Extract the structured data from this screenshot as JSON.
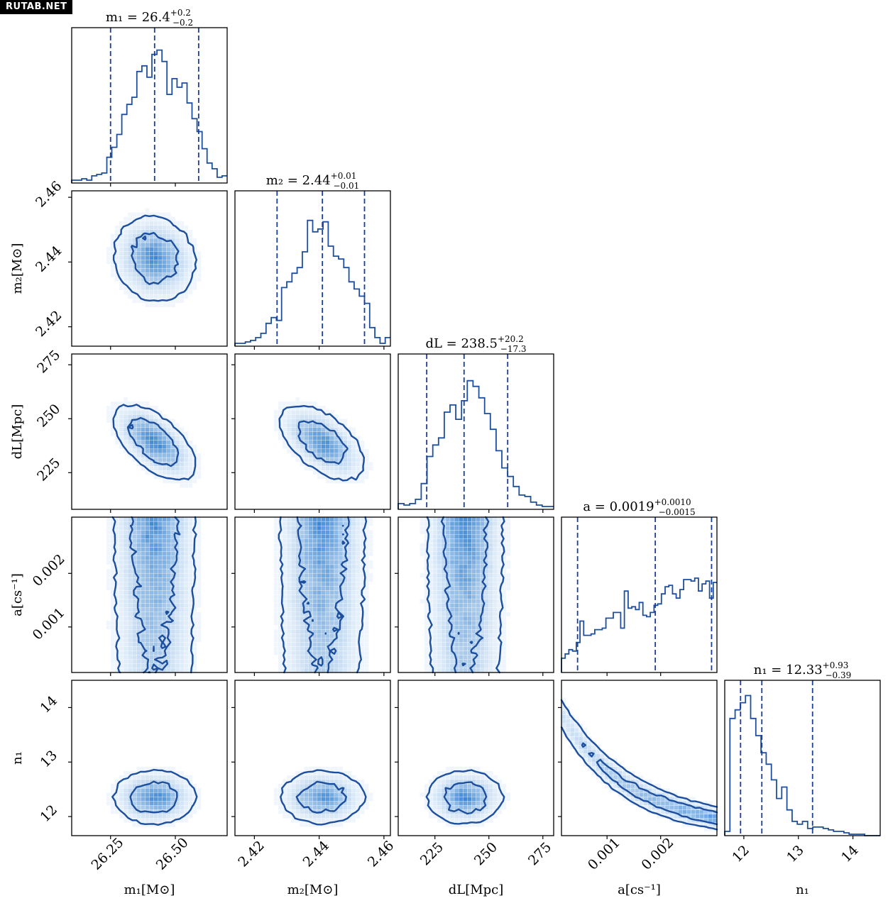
{
  "watermark": "RUTAB.NET",
  "chart_data": {
    "type": "corner",
    "parameters": [
      {
        "key": "m1",
        "label": "m₁[M⊙]",
        "title": "m₁ = 26.4",
        "title_sup": "+0.2",
        "title_sub": "−0.2",
        "range": [
          26.1,
          26.7
        ],
        "ticks": [
          26.25,
          26.5
        ],
        "tick_labels": [
          "26.25",
          "26.50"
        ],
        "mean": 26.42,
        "sd": 0.09,
        "quantiles": [
          26.25,
          26.42,
          26.59
        ]
      },
      {
        "key": "m2",
        "label": "m₂[M⊙]",
        "title": "m₂ = 2.44",
        "title_sup": "+0.01",
        "title_sub": "−0.01",
        "range": [
          2.414,
          2.462
        ],
        "ticks": [
          2.42,
          2.44,
          2.46
        ],
        "tick_labels": [
          "2.42",
          "2.44",
          "2.46"
        ],
        "mean": 2.441,
        "sd": 0.0075,
        "quantiles": [
          2.427,
          2.441,
          2.454
        ]
      },
      {
        "key": "dL",
        "label": "dL[Mpc]",
        "title": "dL = 238.5",
        "title_sup": "+20.2",
        "title_sub": "−17.3",
        "range": [
          208,
          280
        ],
        "ticks": [
          225,
          250,
          275
        ],
        "tick_labels": [
          "225",
          "250",
          "275"
        ],
        "mean": 239,
        "sd": 10,
        "quantiles": [
          221.2,
          238.5,
          258.7
        ]
      },
      {
        "key": "a",
        "label": "a[cs⁻¹]",
        "title": "a = 0.0019",
        "title_sup": "+0.0010",
        "title_sub": "−0.0015",
        "range": [
          0.00015,
          0.00305
        ],
        "ticks": [
          0.001,
          0.002
        ],
        "tick_labels": [
          "0.001",
          "0.002"
        ],
        "quantiles": [
          0.00045,
          0.0019,
          0.00295
        ]
      },
      {
        "key": "n1",
        "label": "n₁",
        "title": "n₁ = 12.33",
        "title_sup": "+0.93",
        "title_sub": "−0.39",
        "range": [
          11.65,
          14.5
        ],
        "ticks": [
          12,
          13,
          14
        ],
        "tick_labels": [
          "12",
          "13",
          "14"
        ],
        "quantiles": [
          11.94,
          12.33,
          13.26
        ]
      }
    ],
    "histograms": {
      "m1": [
        0.02,
        0.02,
        0.03,
        0.02,
        0.05,
        0.06,
        0.07,
        0.18,
        0.25,
        0.34,
        0.48,
        0.55,
        0.6,
        0.78,
        0.82,
        0.74,
        0.9,
        0.93,
        0.85,
        0.62,
        0.73,
        0.67,
        0.7,
        0.56,
        0.45,
        0.36,
        0.24,
        0.14,
        0.1,
        0.04,
        0.05
      ],
      "m2": [
        0.02,
        0.02,
        0.03,
        0.04,
        0.06,
        0.09,
        0.16,
        0.2,
        0.18,
        0.41,
        0.45,
        0.51,
        0.55,
        0.66,
        0.88,
        0.8,
        0.82,
        0.87,
        0.7,
        0.63,
        0.61,
        0.55,
        0.45,
        0.4,
        0.35,
        0.3,
        0.13,
        0.06,
        0.02,
        0.06
      ],
      "dL": [
        0.04,
        0.03,
        0.04,
        0.07,
        0.18,
        0.37,
        0.45,
        0.5,
        0.68,
        0.73,
        0.63,
        0.76,
        0.9,
        0.86,
        0.78,
        0.67,
        0.56,
        0.41,
        0.29,
        0.23,
        0.16,
        0.1,
        0.09,
        0.05,
        0.03,
        0.02,
        0.02
      ],
      "a": [
        0.1,
        0.13,
        0.16,
        0.15,
        0.21,
        0.36,
        0.26,
        0.26,
        0.27,
        0.3,
        0.3,
        0.31,
        0.38,
        0.38,
        0.42,
        0.42,
        0.31,
        0.57,
        0.45,
        0.46,
        0.44,
        0.49,
        0.4,
        0.39,
        0.42,
        0.47,
        0.48,
        0.55,
        0.6,
        0.61,
        0.55,
        0.52,
        0.58,
        0.65,
        0.65,
        0.64,
        0.66,
        0.57,
        0.62,
        0.64,
        0.52,
        0.63
      ],
      "n1": [
        0.03,
        0.82,
        0.88,
        0.93,
        0.98,
        0.82,
        0.7,
        0.58,
        0.5,
        0.39,
        0.26,
        0.34,
        0.18,
        0.1,
        0.08,
        0.1,
        0.05,
        0.06,
        0.06,
        0.05,
        0.04,
        0.03,
        0.03,
        0.02,
        0.01,
        0.01,
        0.01,
        0.0,
        0.0,
        0.0
      ]
    },
    "correlations": {
      "m2_m1": -0.1,
      "dL_m1": -0.6,
      "dL_m2": -0.55,
      "n1_m1": 0.0,
      "n1_m2": 0.0,
      "n1_dL": 0.0
    },
    "colors": {
      "line": "#1d4f9e",
      "fill": "#1f77d0",
      "quantile": "#1a3e9c",
      "frame": "#000000"
    }
  }
}
